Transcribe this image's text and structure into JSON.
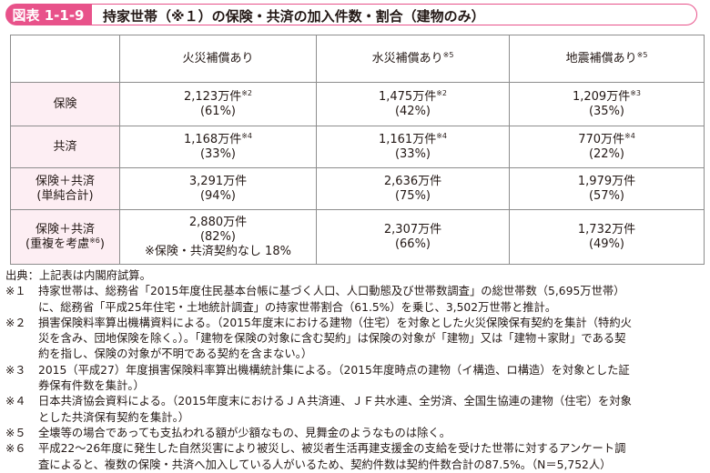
{
  "header": {
    "figure_label": "図表 1-1-9",
    "title": "持家世帯（※１）の保険・共済の加入件数・割合（建物のみ）"
  },
  "table": {
    "columns": [
      {
        "label": "火災補償あり",
        "sup": ""
      },
      {
        "label": "水災補償あり",
        "sup": "※5"
      },
      {
        "label": "地震補償あり",
        "sup": "※5"
      }
    ],
    "rows": [
      {
        "head": [
          {
            "text": "保険",
            "sup": ""
          }
        ],
        "cells": [
          [
            {
              "text": "2,123万件",
              "sup": "※2"
            },
            {
              "text": "(61%)",
              "sup": ""
            }
          ],
          [
            {
              "text": "1,475万件",
              "sup": "※2"
            },
            {
              "text": "(42%)",
              "sup": ""
            }
          ],
          [
            {
              "text": "1,209万件",
              "sup": "※3"
            },
            {
              "text": "(35%)",
              "sup": ""
            }
          ]
        ]
      },
      {
        "head": [
          {
            "text": "共済",
            "sup": ""
          }
        ],
        "cells": [
          [
            {
              "text": "1,168万件",
              "sup": "※4"
            },
            {
              "text": "(33%)",
              "sup": ""
            }
          ],
          [
            {
              "text": "1,161万件",
              "sup": "※4"
            },
            {
              "text": "(33%)",
              "sup": ""
            }
          ],
          [
            {
              "text": "770万件",
              "sup": "※4"
            },
            {
              "text": "(22%)",
              "sup": ""
            }
          ]
        ]
      },
      {
        "head": [
          {
            "text": "保険＋共済",
            "sup": ""
          },
          {
            "text": "(単純合計)",
            "sup": ""
          }
        ],
        "cells": [
          [
            {
              "text": "3,291万件",
              "sup": ""
            },
            {
              "text": "(94%)",
              "sup": ""
            }
          ],
          [
            {
              "text": "2,636万件",
              "sup": ""
            },
            {
              "text": "(75%)",
              "sup": ""
            }
          ],
          [
            {
              "text": "1,979万件",
              "sup": ""
            },
            {
              "text": "(57%)",
              "sup": ""
            }
          ]
        ]
      },
      {
        "head": [
          {
            "text": "保険＋共済",
            "sup": ""
          },
          {
            "text": "(重複を考慮",
            "sup": "※6",
            "after": ")"
          }
        ],
        "cells": [
          [
            {
              "text": "2,880万件",
              "sup": ""
            },
            {
              "text": "(82%)",
              "sup": ""
            },
            {
              "text": "※保険・共済契約なし 18%",
              "sup": ""
            }
          ],
          [
            {
              "text": "2,307万件",
              "sup": ""
            },
            {
              "text": "(66%)",
              "sup": ""
            }
          ],
          [
            {
              "text": "1,732万件",
              "sup": ""
            },
            {
              "text": "(49%)",
              "sup": ""
            }
          ]
        ]
      }
    ]
  },
  "source": "出典：上記表は内閣府試算。",
  "notes": [
    {
      "mark": "※１",
      "lines": [
        "持家世帯は、総務省「2015年度住民基本台帳に基づく人口、人口動態及び世帯数調査」の総世帯数（5,695万世帯）",
        "に、総務省「平成25年住宅・土地統計調査」の持家世帯割合（61.5%）を乗じ、3,502万世帯と推計。"
      ]
    },
    {
      "mark": "※２",
      "lines": [
        "損害保険料率算出機構資料による。（2015年度末における建物（住宅）を対象とした火災保険保有契約を集計（特約火",
        "災を含み、団地保険を除く。）。「建物を保険の対象に含む契約」は保険の対象が「建物」又は「建物＋家財」である契",
        "約を指し、保険の対象が不明である契約を含まない。）"
      ]
    },
    {
      "mark": "※３",
      "lines": [
        "2015（平成27）年度損害保険料率算出機構統計集による。（2015年度時点の建物（イ構造、ロ構造）を対象とした証",
        "券保有件数を集計。）"
      ]
    },
    {
      "mark": "※４",
      "lines": [
        "日本共済協会資料による。（2015年度末におけるＪＡ共済連、ＪＦ共水連、全労済、全国生協連の建物（住宅）を対象",
        "とした共済保有契約を集計。）"
      ]
    },
    {
      "mark": "※５",
      "lines": [
        "全壊等の場合であっても支払われる額が少額なもの、見舞金のようなものは除く。"
      ]
    },
    {
      "mark": "※６",
      "lines": [
        "平成22～26年度に発生した自然災害により被災し、被災者生活再建支援金の支給を受けた世帯に対するアンケート調",
        "査によると、複数の保険・共済へ加入している人がいるため、契約件数は契約件数合計の87.5%。（N＝5,752人）"
      ]
    }
  ]
}
